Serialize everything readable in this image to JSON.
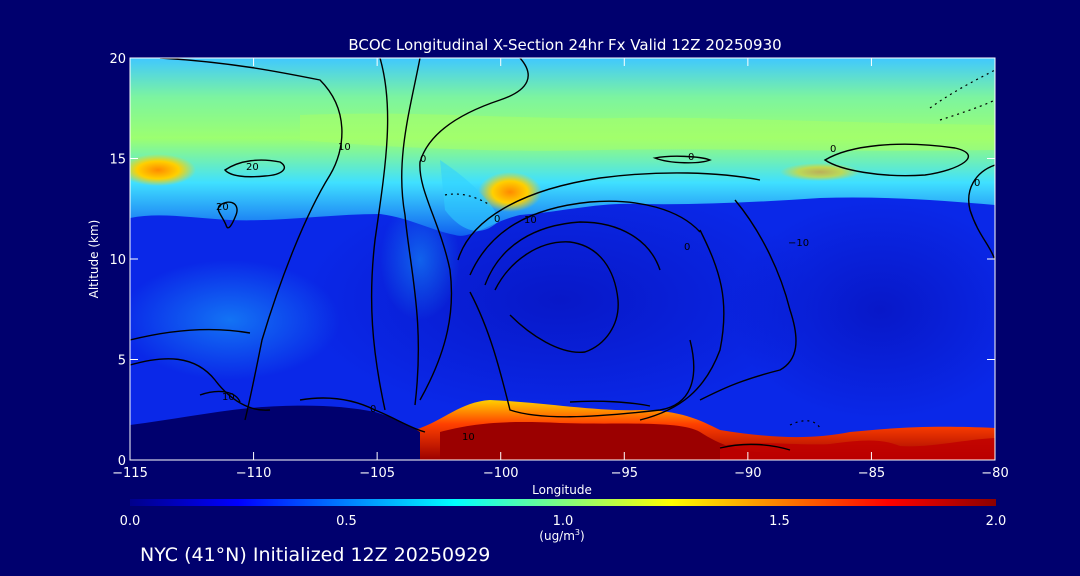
{
  "chart_data": {
    "type": "heatmap",
    "title": "BCOC Longitudinal X-Section 24hr  Fx Valid 12Z 20250930",
    "xlabel": "Longitude",
    "ylabel": "Altitude (km)",
    "xlim": [
      -115,
      -80
    ],
    "ylim": [
      0,
      20
    ],
    "x_ticks": [
      -115,
      -110,
      -105,
      -100,
      -95,
      -90,
      -85,
      -80
    ],
    "x_tick_labels": [
      "−115",
      "−110",
      "−105",
      "−100",
      "−95",
      "−90",
      "−85",
      "−80"
    ],
    "y_ticks": [
      0,
      5,
      10,
      15,
      20
    ],
    "y_tick_labels": [
      "0",
      "5",
      "10",
      "15",
      "20"
    ],
    "colorbar": {
      "min": 0.0,
      "max": 2.0,
      "ticks": [
        0.0,
        0.5,
        1.0,
        1.5,
        2.0
      ],
      "tick_labels": [
        "0.0",
        "0.5",
        "1.0",
        "1.5",
        "2.0"
      ],
      "units_label": "(ug/m",
      "units_superscript": "3",
      "units_close": ")",
      "colors": [
        "#00008b",
        "#0000ff",
        "#0080ff",
        "#00ffff",
        "#80ff80",
        "#ffff00",
        "#ff8000",
        "#ff0000",
        "#8b0000"
      ]
    },
    "contour_labels": [
      "10",
      "20",
      "20",
      "0",
      "0",
      "10",
      "0",
      "−10",
      "10",
      "0",
      "10",
      "0",
      "0",
      "0"
    ],
    "annotation": "NYC (41°N) Initialized 12Z 20250929"
  }
}
